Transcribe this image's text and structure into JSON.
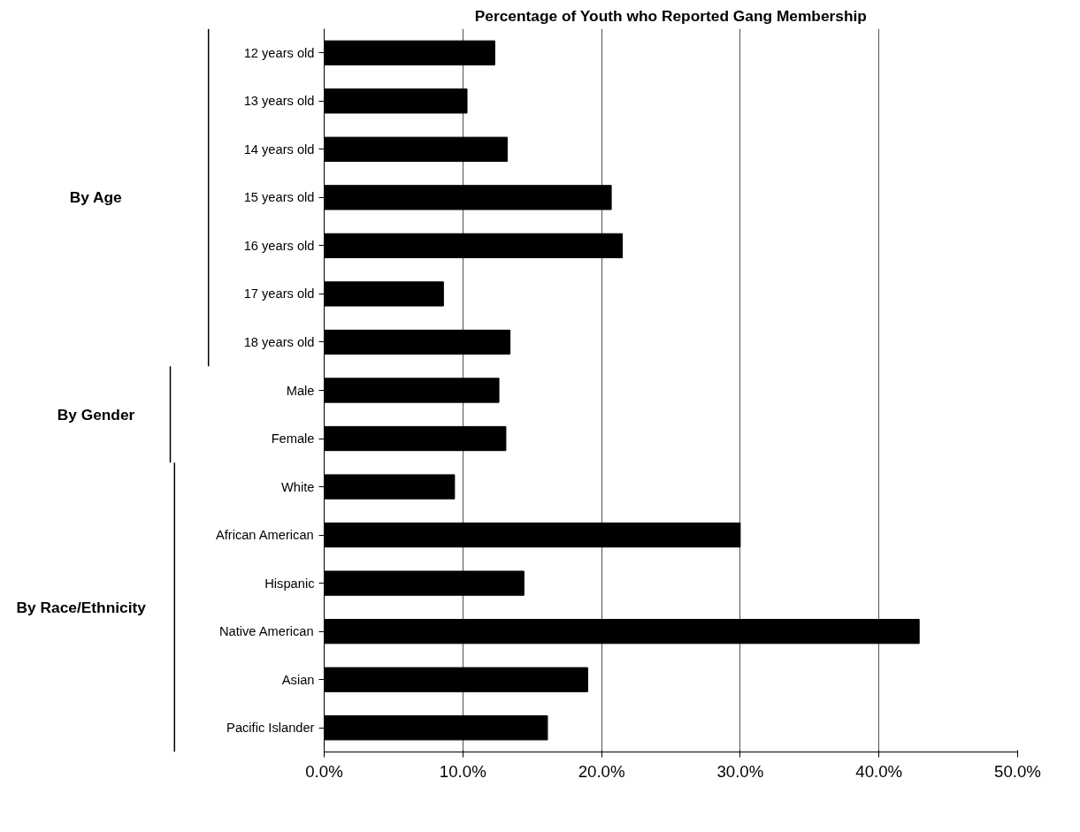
{
  "chart_data": {
    "type": "bar",
    "orientation": "horizontal",
    "title": "Percentage of Youth who Reported Gang Membership",
    "categories": [
      "12 years old",
      "13 years old",
      "14 years old",
      "15 years old",
      "16 years old",
      "17 years old",
      "18 years old",
      "Male",
      "Female",
      "White",
      "African American",
      "Hispanic",
      "Native American",
      "Asian",
      "Pacific Islander"
    ],
    "values": [
      12.3,
      10.3,
      13.2,
      20.7,
      21.5,
      8.6,
      13.4,
      12.6,
      13.1,
      9.4,
      30.0,
      14.4,
      42.9,
      19.0,
      16.1
    ],
    "color": "#000000",
    "xlim": [
      0,
      50
    ],
    "xticks": [
      {
        "value": 0,
        "label": "0.0%"
      },
      {
        "value": 10,
        "label": "10.0%"
      },
      {
        "value": 20,
        "label": "20.0%"
      },
      {
        "value": 30,
        "label": "30.0%"
      },
      {
        "value": 40,
        "label": "40.0%"
      },
      {
        "value": 50,
        "label": "50.0%"
      }
    ],
    "grid": "x",
    "annotations": [
      "By Age",
      "By Gender",
      "By Race/Ethnicity"
    ]
  }
}
